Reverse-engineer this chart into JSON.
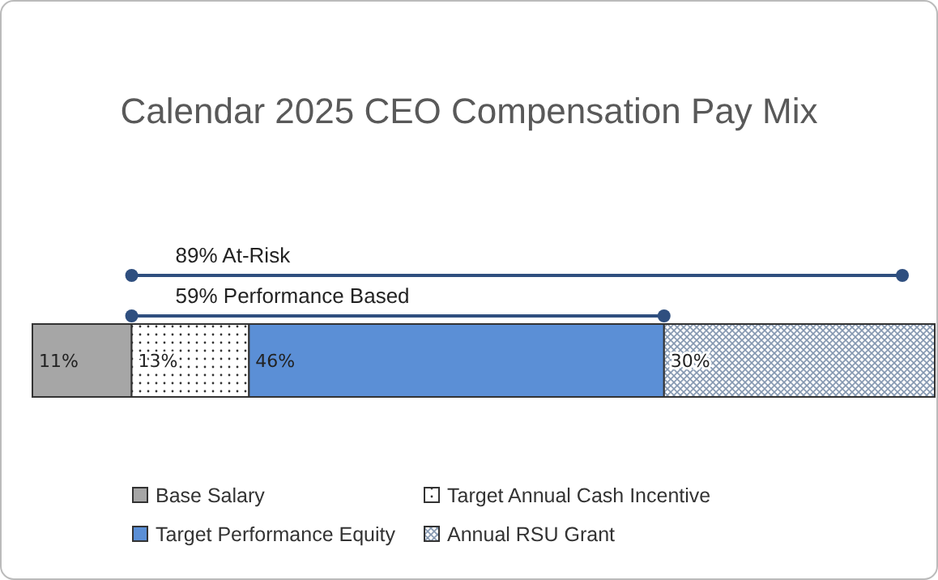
{
  "chart_data": {
    "type": "bar",
    "orientation": "horizontal",
    "stacked": true,
    "title": "Calendar 2025 CEO Compensation Pay Mix",
    "categories": [
      null
    ],
    "legend": "bottom",
    "annotations": [
      "89% At-Risk",
      "59% Performance Based"
    ],
    "series": [
      {
        "name": "Base Salary",
        "color": "#a6a6a6",
        "values": [
          11
        ],
        "value_labels": [
          "11%"
        ]
      },
      {
        "name": "Target Annual Cash Incentive",
        "color": "#ffffff",
        "values": [
          13
        ],
        "value_labels": [
          "13%"
        ]
      },
      {
        "name": "Target Performance Equity",
        "color": "#5b8fd6",
        "values": [
          46
        ],
        "value_labels": [
          "46%"
        ]
      },
      {
        "name": "Annual RSU Grant",
        "color": "#8497b0",
        "values": [
          30
        ],
        "value_labels": [
          "30%"
        ]
      }
    ]
  }
}
